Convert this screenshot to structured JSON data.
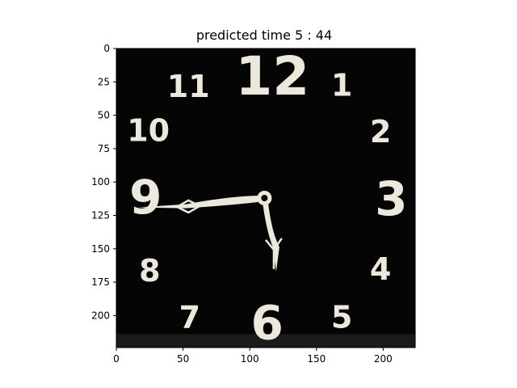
{
  "chart_data": {
    "type": "image",
    "title": "predicted time 5 : 44",
    "xlabel": "",
    "ylabel": "",
    "xlim": [
      0,
      224
    ],
    "ylim": [
      224,
      0
    ],
    "x_ticks": [
      0,
      50,
      100,
      150,
      200
    ],
    "y_ticks": [
      0,
      25,
      50,
      75,
      100,
      125,
      150,
      175,
      200
    ],
    "image": {
      "subject": "analog clock face",
      "background_color": "#050505",
      "numeral_color": "#ece8dc",
      "hand_color": "#ece8dc",
      "numerals": [
        {
          "label": "12",
          "x": 117,
          "y": 20
        },
        {
          "label": "1",
          "x": 169,
          "y": 27
        },
        {
          "label": "2",
          "x": 198,
          "y": 62
        },
        {
          "label": "3",
          "x": 206,
          "y": 112
        },
        {
          "label": "4",
          "x": 198,
          "y": 165
        },
        {
          "label": "5",
          "x": 169,
          "y": 201
        },
        {
          "label": "6",
          "x": 113,
          "y": 205
        },
        {
          "label": "7",
          "x": 55,
          "y": 201
        },
        {
          "label": "8",
          "x": 25,
          "y": 166
        },
        {
          "label": "9",
          "x": 22,
          "y": 111
        },
        {
          "label": "10",
          "x": 24,
          "y": 61
        },
        {
          "label": "11",
          "x": 54,
          "y": 28
        }
      ],
      "hands": {
        "pivot": [
          111,
          112
        ],
        "minute_tip": [
          16,
          119
        ],
        "hour_tip": [
          121,
          167
        ]
      }
    }
  }
}
